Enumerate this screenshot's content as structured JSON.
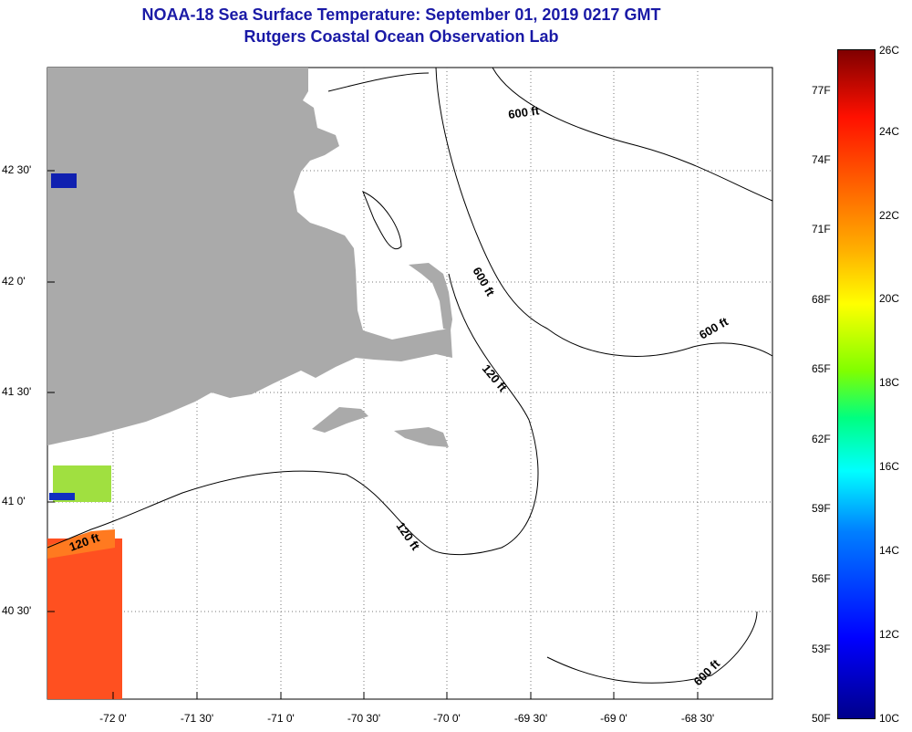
{
  "header": {
    "title": "NOAA-18 Sea Surface Temperature:  September 01, 2019 0217 GMT",
    "subtitle": "Rutgers Coastal Ocean Observation Lab"
  },
  "map": {
    "lat_labels": [
      "42 30'",
      "42 0'",
      "41 30'",
      "41 0'",
      "40 30'"
    ],
    "lon_labels": [
      "-72 0'",
      "-71 30'",
      "-71 0'",
      "-70 30'",
      "-70 0'",
      "-69 30'",
      "-69 0'",
      "-68 30'"
    ],
    "contour_labels": [
      "600 ft",
      "600 ft",
      "600 ft",
      "600 ft",
      "120 ft",
      "120 ft",
      "120 ft"
    ],
    "colors": {
      "land": "#aaaaaa",
      "ocean": "#ffffff",
      "sst_warm": "#ff5020"
    }
  },
  "colorbar": {
    "fahrenheit": [
      "77F",
      "74F",
      "71F",
      "68F",
      "65F",
      "62F",
      "59F",
      "56F",
      "53F",
      "50F"
    ],
    "celsius": [
      "26C",
      "24C",
      "22C",
      "20C",
      "18C",
      "16C",
      "14C",
      "12C",
      "10C"
    ]
  }
}
